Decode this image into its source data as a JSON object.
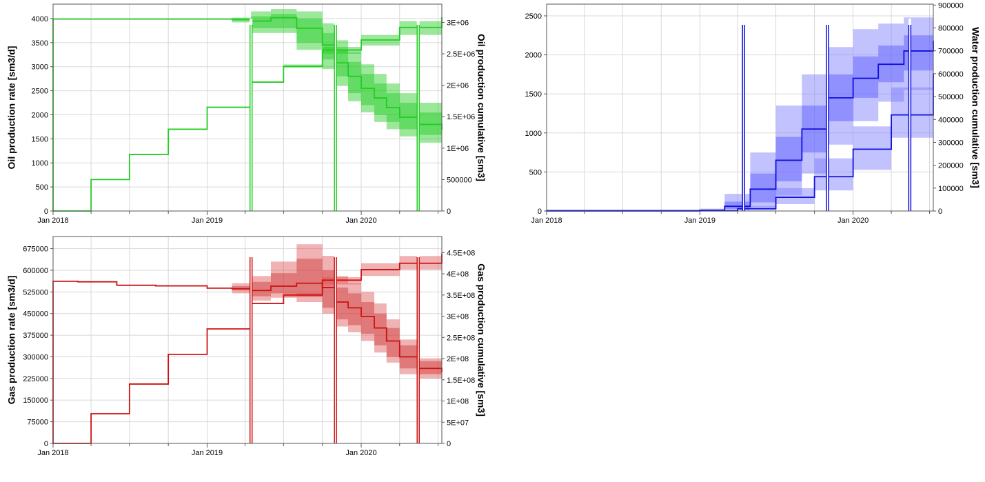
{
  "chart_data": [
    {
      "id": "oil",
      "type": "line",
      "ylabel_left": "Oil production rate [sm3/d]",
      "ylabel_right": "Oil production cumulative [sm3]",
      "color": "#22cc22",
      "band_outer": "#22cc22",
      "band_inner": "#22cc22",
      "x_ticks": [
        "Jan 2018",
        "Jan 2019",
        "Jan 2020"
      ],
      "x_range": [
        "2018-01-01",
        "2020-07-10"
      ],
      "ylim_left": [
        0,
        4300
      ],
      "ylim_right": [
        0,
        3290000
      ],
      "yticks_left": [
        0,
        500,
        1000,
        1500,
        2000,
        2500,
        3000,
        3500,
        4000
      ],
      "yticks_right": [
        0,
        500000,
        1000000,
        1500000,
        2000000,
        2500000,
        3000000
      ],
      "yticklabels_right": [
        "0",
        "500000",
        "1E+06",
        "1.5E+06",
        "2E+06",
        "2.5E+06",
        "3E+06"
      ],
      "shutdowns": [
        "2019-04-15",
        "2019-11-01",
        "2020-05-15"
      ],
      "rate": {
        "x": [
          "2018-01-01",
          "2018-04-01",
          "2018-07-01",
          "2018-10-01",
          "2019-01-01",
          "2019-03-01",
          "2019-04-15",
          "2019-06-01",
          "2019-08-01",
          "2019-10-01",
          "2019-11-01",
          "2019-12-01",
          "2020-01-01",
          "2020-02-01",
          "2020-03-01",
          "2020-04-01",
          "2020-05-15",
          "2020-07-10"
        ],
        "mid": [
          3990,
          3990,
          3990,
          3990,
          3990,
          3985,
          3950,
          4020,
          3800,
          3450,
          3080,
          2800,
          2550,
          2350,
          2150,
          1950,
          1800,
          1690
        ],
        "p10_inner": [
          3990,
          3990,
          3990,
          3990,
          3990,
          3950,
          3800,
          3800,
          3500,
          3150,
          2800,
          2450,
          2200,
          2000,
          1850,
          1700,
          1580,
          1480
        ],
        "p90_inner": [
          3990,
          3990,
          3990,
          3990,
          3990,
          4000,
          4050,
          4100,
          4000,
          3700,
          3350,
          3100,
          2850,
          2650,
          2450,
          2250,
          2050,
          1920
        ],
        "p10_outer": [
          3990,
          3990,
          3990,
          3990,
          3990,
          3920,
          3700,
          3700,
          3350,
          2950,
          2600,
          2280,
          2050,
          1850,
          1700,
          1550,
          1420,
          1320
        ],
        "p90_outer": [
          3990,
          3990,
          3990,
          3990,
          3990,
          4020,
          4150,
          4200,
          4150,
          3900,
          3550,
          3300,
          3050,
          2850,
          2650,
          2450,
          2250,
          2120
        ]
      },
      "cumulative": {
        "x": [
          "2018-01-01",
          "2018-04-01",
          "2018-07-01",
          "2018-10-01",
          "2019-01-01",
          "2019-04-15",
          "2019-07-01",
          "2019-10-01",
          "2020-01-01",
          "2020-04-01",
          "2020-07-10"
        ],
        "mid": [
          0,
          500000,
          900000,
          1300000,
          1650000,
          2050000,
          2300000,
          2560000,
          2720000,
          2920000,
          3080000
        ],
        "p10": [
          0,
          500000,
          900000,
          1300000,
          1650000,
          2050000,
          2280000,
          2500000,
          2630000,
          2800000,
          2930000
        ],
        "p90": [
          0,
          500000,
          900000,
          1300000,
          1650000,
          2050000,
          2330000,
          2610000,
          2800000,
          3020000,
          3200000
        ]
      }
    },
    {
      "id": "water",
      "type": "line",
      "ylabel_left": "",
      "ylabel_right": "Water production cumulative [sm3]",
      "color": "#1010dd",
      "band_outer": "#7777ff",
      "band_inner": "#5555ff",
      "x_ticks": [
        "Jan 2018",
        "Jan 2019",
        "Jan 2020"
      ],
      "x_range": [
        "2018-01-01",
        "2020-07-10"
      ],
      "ylim_left": [
        0,
        2650
      ],
      "ylim_right": [
        0,
        904000
      ],
      "yticks_left": [
        0,
        500,
        1000,
        1500,
        2000,
        2500
      ],
      "yticks_right": [
        0,
        100000,
        200000,
        300000,
        400000,
        500000,
        600000,
        700000,
        800000,
        900000
      ],
      "yticklabels_right": [
        "0",
        "100000",
        "200000",
        "300000",
        "400000",
        "500000",
        "600000",
        "700000",
        "800000",
        "900000"
      ],
      "shutdowns": [
        "2019-04-15",
        "2019-11-01",
        "2020-05-15"
      ],
      "rate": {
        "x": [
          "2018-01-01",
          "2018-10-01",
          "2019-01-01",
          "2019-03-01",
          "2019-05-01",
          "2019-07-01",
          "2019-09-01",
          "2019-11-01",
          "2020-01-01",
          "2020-03-01",
          "2020-05-01",
          "2020-07-10"
        ],
        "mid": [
          5,
          5,
          10,
          60,
          280,
          650,
          1050,
          1450,
          1700,
          1880,
          2050,
          2180
        ],
        "p10_inner": [
          5,
          5,
          8,
          25,
          110,
          380,
          750,
          1150,
          1450,
          1650,
          1800,
          1900
        ],
        "p90_inner": [
          5,
          5,
          18,
          120,
          480,
          950,
          1350,
          1750,
          1980,
          2120,
          2250,
          2350
        ],
        "p10_outer": [
          5,
          5,
          5,
          10,
          50,
          200,
          480,
          850,
          1150,
          1400,
          1550,
          1650
        ],
        "p90_outer": [
          5,
          5,
          30,
          220,
          750,
          1350,
          1750,
          2100,
          2330,
          2400,
          2480,
          2530
        ]
      },
      "cumulative": {
        "x": [
          "2018-01-01",
          "2018-10-01",
          "2019-01-01",
          "2019-04-01",
          "2019-07-01",
          "2019-10-01",
          "2020-01-01",
          "2020-04-01",
          "2020-07-10"
        ],
        "mid": [
          0,
          0,
          1000,
          10000,
          60000,
          150000,
          270000,
          420000,
          600000
        ],
        "p10": [
          0,
          0,
          500,
          4000,
          30000,
          90000,
          180000,
          320000,
          480000
        ],
        "p90": [
          0,
          0,
          2000,
          22000,
          100000,
          230000,
          370000,
          540000,
          720000
        ]
      }
    },
    {
      "id": "gas",
      "type": "line",
      "ylabel_left": "Gas production rate [sm3/d]",
      "ylabel_right": "Gas production cumulative [sm3]",
      "color": "#cc1111",
      "band_outer": "#dd5555",
      "band_inner": "#cc3333",
      "x_ticks": [
        "Jan 2018",
        "Jan 2019",
        "Jan 2020"
      ],
      "x_range": [
        "2018-01-01",
        "2020-07-10"
      ],
      "ylim_left": [
        0,
        717000
      ],
      "ylim_right": [
        0,
        488000000
      ],
      "yticks_left": [
        0,
        75000,
        150000,
        225000,
        300000,
        375000,
        450000,
        525000,
        600000,
        675000
      ],
      "yticks_right": [
        0,
        50000000,
        100000000,
        150000000,
        200000000,
        250000000,
        300000000,
        350000000,
        400000000,
        450000000
      ],
      "yticklabels_right": [
        "0",
        "5E+07",
        "1E+08",
        "1.5E+08",
        "2E+08",
        "2.5E+08",
        "3E+08",
        "3.5E+08",
        "4E+08",
        "4.5E+08"
      ],
      "shutdowns": [
        "2019-04-15",
        "2019-11-01",
        "2020-05-15"
      ],
      "rate": {
        "x": [
          "2018-01-01",
          "2018-03-01",
          "2018-06-01",
          "2018-09-01",
          "2019-01-01",
          "2019-03-01",
          "2019-04-15",
          "2019-06-01",
          "2019-08-01",
          "2019-10-01",
          "2019-11-01",
          "2019-12-01",
          "2020-01-01",
          "2020-02-01",
          "2020-03-01",
          "2020-04-01",
          "2020-05-15",
          "2020-07-10"
        ],
        "mid": [
          562000,
          560000,
          548000,
          546000,
          538000,
          536000,
          530000,
          545000,
          555000,
          540000,
          490000,
          470000,
          440000,
          400000,
          355000,
          300000,
          260000,
          248000
        ],
        "p10_inner": [
          562000,
          560000,
          548000,
          546000,
          538000,
          530000,
          510000,
          520000,
          510000,
          470000,
          430000,
          410000,
          380000,
          340000,
          300000,
          260000,
          240000,
          225000
        ],
        "p90_inner": [
          562000,
          560000,
          548000,
          546000,
          538000,
          545000,
          560000,
          590000,
          640000,
          600000,
          540000,
          520000,
          490000,
          450000,
          400000,
          340000,
          285000,
          270000
        ],
        "p10_outer": [
          562000,
          560000,
          548000,
          546000,
          538000,
          520000,
          495000,
          505000,
          490000,
          450000,
          405000,
          385000,
          355000,
          315000,
          280000,
          240000,
          225000,
          210000
        ],
        "p90_outer": [
          562000,
          560000,
          548000,
          546000,
          538000,
          555000,
          580000,
          630000,
          690000,
          650000,
          580000,
          555000,
          525000,
          485000,
          430000,
          360000,
          295000,
          280000
        ]
      },
      "cumulative": {
        "x": [
          "2018-01-01",
          "2018-04-01",
          "2018-07-01",
          "2018-10-01",
          "2019-01-01",
          "2019-04-15",
          "2019-07-01",
          "2019-10-01",
          "2020-01-01",
          "2020-04-01",
          "2020-07-10"
        ],
        "mid": [
          0,
          70000000,
          140000000,
          210000000,
          270000000,
          330000000,
          350000000,
          385000000,
          410000000,
          425000000,
          448000000
        ],
        "p10": [
          0,
          70000000,
          140000000,
          210000000,
          270000000,
          330000000,
          345000000,
          375000000,
          395000000,
          410000000,
          430000000
        ],
        "p90": [
          0,
          70000000,
          140000000,
          210000000,
          270000000,
          330000000,
          355000000,
          392000000,
          425000000,
          442000000,
          462000000
        ]
      }
    }
  ]
}
